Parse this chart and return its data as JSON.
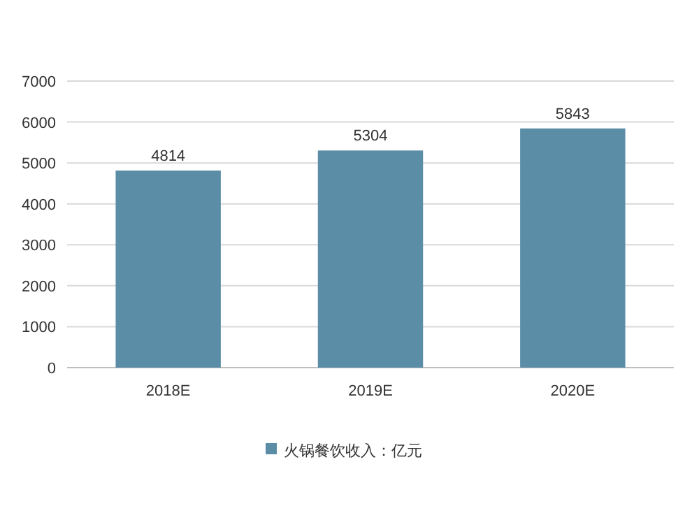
{
  "chart_data": {
    "type": "bar",
    "categories": [
      "2018E",
      "2019E",
      "2020E"
    ],
    "series": [
      {
        "name": "火锅餐饮收入：亿元",
        "color": "#5b8ea6",
        "values": [
          4814,
          5304,
          5843
        ]
      }
    ],
    "ylim": [
      0,
      7000
    ],
    "yticks": [
      0,
      1000,
      2000,
      3000,
      4000,
      5000,
      6000,
      7000
    ],
    "grid": "y",
    "legend": "bottom",
    "data_labels": true
  }
}
